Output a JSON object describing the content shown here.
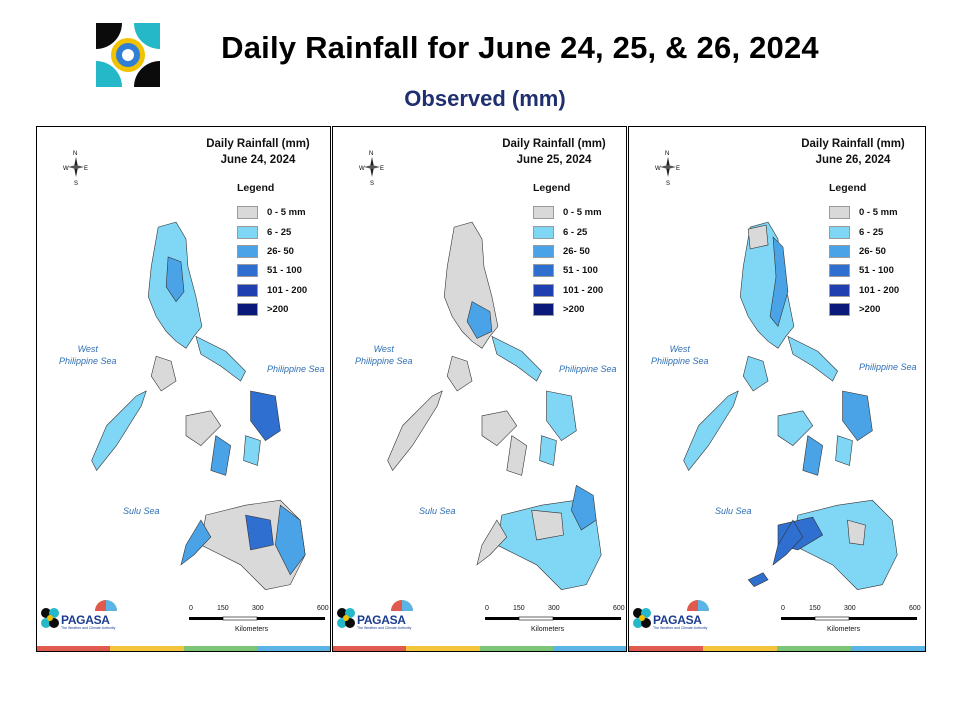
{
  "header": {
    "title": "Daily Rainfall for June 24, 25, & 26, 2024",
    "subtitle": "Observed (mm)"
  },
  "legend": {
    "title": "Legend",
    "classes": [
      {
        "label": "0 - 5 mm",
        "color": "#d9d9d9"
      },
      {
        "label": "6 - 25",
        "color": "#7fd6f5"
      },
      {
        "label": "26- 50",
        "color": "#4aa3e6"
      },
      {
        "label": "51 - 100",
        "color": "#2f6fd0"
      },
      {
        "label": "101 - 200",
        "color": "#1f3fb0"
      },
      {
        "label": ">200",
        "color": "#0b1a7a"
      }
    ]
  },
  "panels": [
    {
      "title_line1": "Daily Rainfall (mm)",
      "title_line2": "June 24, 2024"
    },
    {
      "title_line1": "Daily Rainfall (mm)",
      "title_line2": "June 25, 2024"
    },
    {
      "title_line1": "Daily Rainfall (mm)",
      "title_line2": "June 26, 2024"
    }
  ],
  "sea_labels": {
    "west": "West\nPhilippine Sea",
    "east": "Philippine Sea",
    "sulu": "Sulu Sea"
  },
  "compass": {
    "n": "N",
    "s": "S",
    "e": "E",
    "w": "W"
  },
  "scale": {
    "ticks": [
      "0",
      "150",
      "300",
      "600"
    ],
    "unit": "Kilometers"
  },
  "branding": {
    "dost": "DOST",
    "payong": "PAYONG",
    "name": "PAGASA",
    "tagline": "The Weather and Climate Authority"
  },
  "stripe_colors": [
    "#e05a4f",
    "#f2c53d",
    "#7cc576",
    "#5ab4e5"
  ]
}
